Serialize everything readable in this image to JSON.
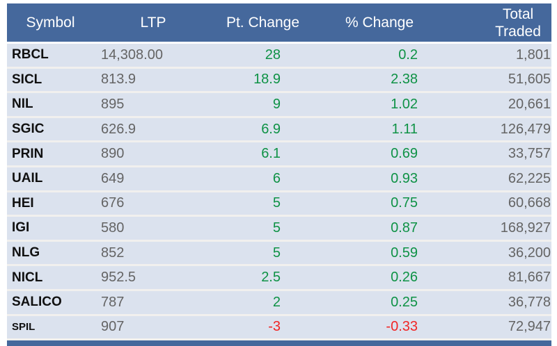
{
  "header": {
    "symbol": "Symbol",
    "ltp": "LTP",
    "pt_change": "Pt. Change",
    "pct_change": "% Change",
    "total_traded_line1": "Total",
    "total_traded_line2": "Traded"
  },
  "colors": {
    "header_bg": "#45689C",
    "row_bg": "#DBE2EE",
    "gap": "#F1F0EE",
    "positive_green": "#0E9245",
    "negative_red": "#F12525",
    "value_gray": "#646464",
    "symbol_black": "#101010",
    "header_text": "#FFFFFF"
  },
  "chart_data": {
    "type": "table",
    "columns": [
      "Symbol",
      "LTP",
      "Pt. Change",
      "% Change",
      "Total Traded"
    ],
    "rows": [
      {
        "symbol": "RBCL",
        "ltp": "14,308.00",
        "pt_change": "28",
        "pct_change": "0.2",
        "total_traded": "1,801",
        "trend": "up"
      },
      {
        "symbol": "SICL",
        "ltp": "813.9",
        "pt_change": "18.9",
        "pct_change": "2.38",
        "total_traded": "51,605",
        "trend": "up"
      },
      {
        "symbol": "NIL",
        "ltp": "895",
        "pt_change": "9",
        "pct_change": "1.02",
        "total_traded": "20,661",
        "trend": "up"
      },
      {
        "symbol": "SGIC",
        "ltp": "626.9",
        "pt_change": "6.9",
        "pct_change": "1.11",
        "total_traded": "126,479",
        "trend": "up"
      },
      {
        "symbol": "PRIN",
        "ltp": "890",
        "pt_change": "6.1",
        "pct_change": "0.69",
        "total_traded": "33,757",
        "trend": "up"
      },
      {
        "symbol": "UAIL",
        "ltp": "649",
        "pt_change": "6",
        "pct_change": "0.93",
        "total_traded": "62,225",
        "trend": "up"
      },
      {
        "symbol": "HEI",
        "ltp": "676",
        "pt_change": "5",
        "pct_change": "0.75",
        "total_traded": "60,668",
        "trend": "up"
      },
      {
        "symbol": "IGI",
        "ltp": "580",
        "pt_change": "5",
        "pct_change": "0.87",
        "total_traded": "168,927",
        "trend": "up"
      },
      {
        "symbol": "NLG",
        "ltp": "852",
        "pt_change": "5",
        "pct_change": "0.59",
        "total_traded": "36,200",
        "trend": "up"
      },
      {
        "symbol": "NICL",
        "ltp": "952.5",
        "pt_change": "2.5",
        "pct_change": "0.26",
        "total_traded": "81,667",
        "trend": "up"
      },
      {
        "symbol": "SALICO",
        "ltp": "787",
        "pt_change": "2",
        "pct_change": "0.25",
        "total_traded": "36,778",
        "trend": "up"
      },
      {
        "symbol": "SPIL",
        "ltp": "907",
        "pt_change": "-3",
        "pct_change": "-0.33",
        "total_traded": "72,947",
        "trend": "down",
        "symbol_compact": true
      }
    ]
  }
}
